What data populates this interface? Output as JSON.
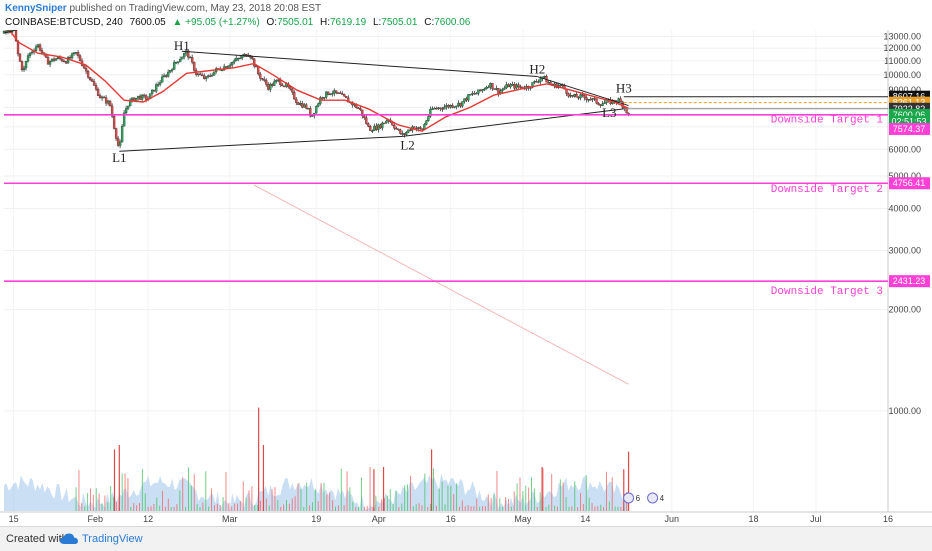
{
  "header": {
    "author": "KennySniper",
    "published": "published on TradingView.com, May 23, 2018 20:08 EST",
    "symbol": "COINBASE:BTCUSD, 240",
    "last": "7600.05",
    "change": "▲ +95.05 (+1.27%)",
    "o_label": "O:",
    "o": "7505.01",
    "h_label": "H:",
    "h": "7619.19",
    "l_label": "L:",
    "l": "7505.01",
    "c_label": "C:",
    "c": "7600.06"
  },
  "footer": {
    "created_with": "Created with",
    "brand": "TradingView"
  },
  "chart_data": {
    "type": "candlestick",
    "symbol": "COINBASE:BTCUSD",
    "interval": "240",
    "x_axis": {
      "tick_labels": [
        "15",
        "Feb",
        "12",
        "Mar",
        "19",
        "Apr",
        "16",
        "May",
        "14",
        "Jun",
        "18",
        "Jul",
        "16"
      ],
      "tick_dates": [
        "2018-01-15",
        "2018-02-01",
        "2018-02-12",
        "2018-03-01",
        "2018-03-19",
        "2018-04-01",
        "2018-04-16",
        "2018-05-01",
        "2018-05-14",
        "2018-06-01",
        "2018-06-18",
        "2018-07-01",
        "2018-07-16"
      ],
      "range": [
        "2018-01-13",
        "2018-07-16"
      ]
    },
    "y_axis": {
      "scale": "log",
      "tick_labels": [
        "1000.00",
        "2000.00",
        "3000.00",
        "4000.00",
        "5000.00",
        "6000.00",
        "7000.00",
        "8000.00",
        "9000.00",
        "10000.00",
        "11000.00",
        "12000.00",
        "13000.00"
      ],
      "range": [
        500,
        13500
      ]
    },
    "price_path": [
      [
        "2018-01-13",
        13300
      ],
      [
        "2018-01-15",
        13700
      ],
      [
        "2018-01-16",
        11300
      ],
      [
        "2018-01-17",
        10200
      ],
      [
        "2018-01-18",
        11400
      ],
      [
        "2018-01-20",
        12300
      ],
      [
        "2018-01-22",
        10900
      ],
      [
        "2018-01-24",
        11200
      ],
      [
        "2018-01-26",
        11000
      ],
      [
        "2018-01-28",
        11600
      ],
      [
        "2018-01-30",
        10300
      ],
      [
        "2018-02-01",
        9100
      ],
      [
        "2018-02-02",
        8600
      ],
      [
        "2018-02-04",
        8200
      ],
      [
        "2018-02-05",
        6900
      ],
      [
        "2018-02-06",
        5920
      ],
      [
        "2018-02-07",
        7700
      ],
      [
        "2018-02-08",
        8300
      ],
      [
        "2018-02-10",
        8600
      ],
      [
        "2018-02-12",
        8500
      ],
      [
        "2018-02-14",
        9400
      ],
      [
        "2018-02-16",
        10100
      ],
      [
        "2018-02-18",
        11000
      ],
      [
        "2018-02-20",
        11700
      ],
      [
        "2018-02-22",
        10100
      ],
      [
        "2018-02-24",
        9700
      ],
      [
        "2018-02-26",
        10300
      ],
      [
        "2018-02-28",
        10600
      ],
      [
        "2018-03-02",
        11000
      ],
      [
        "2018-03-04",
        11400
      ],
      [
        "2018-03-05",
        11650
      ],
      [
        "2018-03-07",
        10000
      ],
      [
        "2018-03-09",
        9200
      ],
      [
        "2018-03-11",
        9600
      ],
      [
        "2018-03-13",
        9200
      ],
      [
        "2018-03-15",
        8300
      ],
      [
        "2018-03-17",
        8000
      ],
      [
        "2018-03-18",
        7500
      ],
      [
        "2018-03-20",
        8600
      ],
      [
        "2018-03-22",
        8900
      ],
      [
        "2018-03-24",
        8700
      ],
      [
        "2018-03-26",
        8300
      ],
      [
        "2018-03-28",
        7900
      ],
      [
        "2018-03-30",
        6900
      ],
      [
        "2018-04-01",
        7000
      ],
      [
        "2018-04-03",
        7400
      ],
      [
        "2018-04-05",
        6800
      ],
      [
        "2018-04-06",
        6600
      ],
      [
        "2018-04-08",
        7000
      ],
      [
        "2018-04-10",
        6850
      ],
      [
        "2018-04-12",
        7900
      ],
      [
        "2018-04-14",
        8000
      ],
      [
        "2018-04-16",
        8100
      ],
      [
        "2018-04-18",
        8200
      ],
      [
        "2018-04-20",
        8700
      ],
      [
        "2018-04-22",
        8900
      ],
      [
        "2018-04-24",
        9400
      ],
      [
        "2018-04-26",
        8900
      ],
      [
        "2018-04-28",
        9300
      ],
      [
        "2018-04-30",
        9200
      ],
      [
        "2018-05-02",
        9200
      ],
      [
        "2018-05-04",
        9600
      ],
      [
        "2018-05-05",
        9900
      ],
      [
        "2018-05-07",
        9300
      ],
      [
        "2018-05-09",
        9300
      ],
      [
        "2018-05-11",
        8600
      ],
      [
        "2018-05-13",
        8600
      ],
      [
        "2018-05-15",
        8500
      ],
      [
        "2018-05-17",
        8200
      ],
      [
        "2018-05-19",
        8300
      ],
      [
        "2018-05-21",
        8400
      ],
      [
        "2018-05-22",
        8050
      ],
      [
        "2018-05-23",
        7600
      ]
    ],
    "moving_average": [
      [
        "2018-01-13",
        14300
      ],
      [
        "2018-01-16",
        12500
      ],
      [
        "2018-01-20",
        11600
      ],
      [
        "2018-01-25",
        11300
      ],
      [
        "2018-01-30",
        10700
      ],
      [
        "2018-02-03",
        9600
      ],
      [
        "2018-02-07",
        8400
      ],
      [
        "2018-02-11",
        8300
      ],
      [
        "2018-02-15",
        8900
      ],
      [
        "2018-02-20",
        10100
      ],
      [
        "2018-02-25",
        10300
      ],
      [
        "2018-03-02",
        10500
      ],
      [
        "2018-03-06",
        10800
      ],
      [
        "2018-03-10",
        10000
      ],
      [
        "2018-03-15",
        9000
      ],
      [
        "2018-03-20",
        8400
      ],
      [
        "2018-03-25",
        8400
      ],
      [
        "2018-03-30",
        7900
      ],
      [
        "2018-04-05",
        7100
      ],
      [
        "2018-04-10",
        6800
      ],
      [
        "2018-04-15",
        7500
      ],
      [
        "2018-04-20",
        8000
      ],
      [
        "2018-04-25",
        8700
      ],
      [
        "2018-05-01",
        9100
      ],
      [
        "2018-05-06",
        9400
      ],
      [
        "2018-05-11",
        9000
      ],
      [
        "2018-05-16",
        8600
      ],
      [
        "2018-05-20",
        8300
      ],
      [
        "2018-05-23",
        7950
      ]
    ],
    "volume_bars": [
      [
        "2018-02-05",
        2800
      ],
      [
        "2018-02-06",
        3000
      ],
      [
        "2018-03-07",
        4700
      ],
      [
        "2018-03-08",
        3000
      ],
      [
        "2018-03-31",
        1900
      ],
      [
        "2018-04-02",
        2000
      ],
      [
        "2018-04-12",
        2800
      ],
      [
        "2018-05-05",
        2000
      ],
      [
        "2018-05-22",
        1900
      ],
      [
        "2018-05-23",
        2700
      ]
    ],
    "trendlines": [
      {
        "from": [
          "2018-01-13",
          13300
        ],
        "to": [
          "2018-01-16",
          13650
        ],
        "color": "#222"
      },
      {
        "from": [
          "2018-02-19",
          11750
        ],
        "to": [
          "2018-05-04",
          9880
        ],
        "color": "#222"
      },
      {
        "from": [
          "2018-05-04",
          9880
        ],
        "to": [
          "2018-05-23",
          8100
        ],
        "color": "#222"
      },
      {
        "from": [
          "2018-02-06",
          5920
        ],
        "to": [
          "2018-04-06",
          6560
        ],
        "color": "#222"
      },
      {
        "from": [
          "2018-04-06",
          6560
        ],
        "to": [
          "2018-05-22",
          7920
        ],
        "color": "#222"
      },
      {
        "from": [
          "2018-03-06",
          4700
        ],
        "to": [
          "2018-05-23",
          1200
        ],
        "color": "#f4b8b8"
      }
    ],
    "pattern_labels": [
      {
        "text": "H1",
        "date": "2018-02-19",
        "price": 11850
      },
      {
        "text": "L1",
        "date": "2018-02-06",
        "price": 5500
      },
      {
        "text": "L2",
        "date": "2018-04-07",
        "price": 6000
      },
      {
        "text": "H2",
        "date": "2018-05-04",
        "price": 10100
      },
      {
        "text": "H3",
        "date": "2018-05-22",
        "price": 8850
      },
      {
        "text": "L3",
        "date": "2018-05-19",
        "price": 7500
      }
    ],
    "horizontal_lines": [
      {
        "price": 8607.16,
        "color": "#222222",
        "start": "2018-05-22",
        "dash": false
      },
      {
        "price": 8261.13,
        "color": "#f0a020",
        "start": "2018-05-22",
        "dash": true
      },
      {
        "price": 7922.82,
        "color": "#888888",
        "start": "2018-05-22",
        "dash": false
      },
      {
        "price": 7600,
        "color": "#ff3fd6",
        "start": "2018-01-13",
        "dash": false
      },
      {
        "price": 4756.41,
        "color": "#ff3fd6",
        "start": "2018-01-13",
        "dash": false
      },
      {
        "price": 2431.23,
        "color": "#ff3fd6",
        "start": "2018-01-13",
        "dash": false
      }
    ],
    "price_labels": [
      {
        "text": "8607.16",
        "price": 8607.16,
        "bg": "#111111",
        "fg": "#ffffff"
      },
      {
        "text": "8261.13",
        "price": 8261.13,
        "bg": "#e8a02a",
        "fg": "#ffffff"
      },
      {
        "text": "7922.82",
        "price": 7922.82,
        "bg": "#333333",
        "fg": "#ffffff"
      },
      {
        "text": "7600.06",
        "price": 7600.06,
        "bg": "#19a84b",
        "fg": "#ffffff"
      },
      {
        "text": "02:51:53",
        "price": 7250,
        "bg": "#19a84b",
        "fg": "#ffffff"
      },
      {
        "text": "7574.37",
        "price": 6900,
        "bg": "#ff3fd6",
        "fg": "#ffffff"
      },
      {
        "text": "4756.41",
        "price": 4756.41,
        "bg": "#ff3fd6",
        "fg": "#ffffff"
      },
      {
        "text": "2431.23",
        "price": 2431.23,
        "bg": "#ff3fd6",
        "fg": "#ffffff"
      }
    ],
    "target_labels": [
      {
        "text": "Downside Target 1",
        "price": 7350
      },
      {
        "text": "Downside Target 2",
        "price": 4580
      },
      {
        "text": "Downside Target 3",
        "price": 2270
      }
    ],
    "event_badges": [
      {
        "text": "6",
        "date": "2018-05-23"
      },
      {
        "text": "4",
        "date": "2018-05-28"
      }
    ],
    "colors": {
      "up": "#26a65b",
      "down": "#e04848",
      "ma": "#e53935",
      "volume_area": "#9fc5ea",
      "target": "#ff3fd6"
    }
  }
}
